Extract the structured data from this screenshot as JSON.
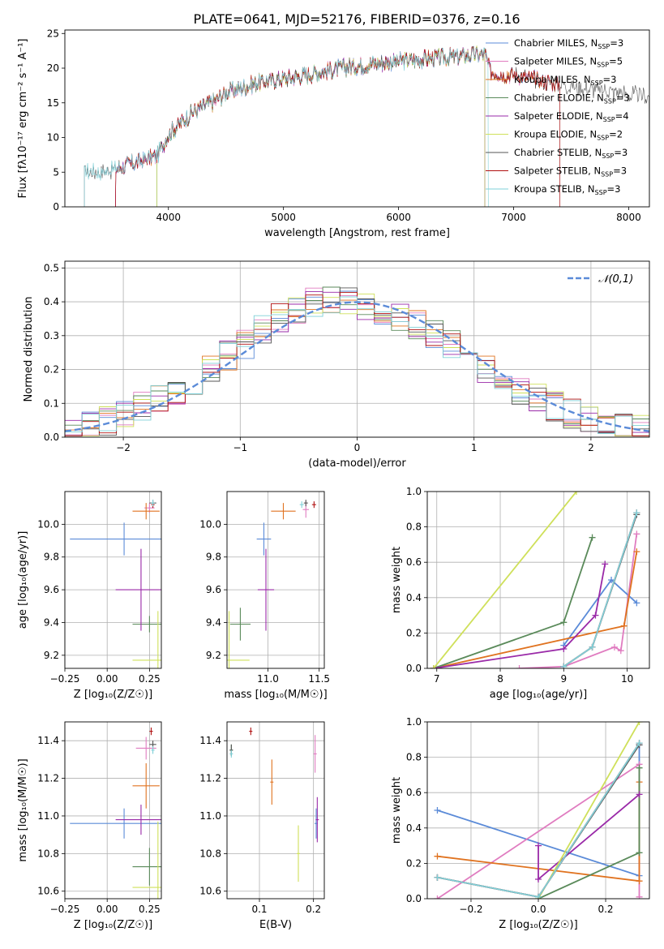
{
  "figure": {
    "title": "PLATE=0641, MJD=52176, FIBERID=0376, z=0.16"
  },
  "colors": {
    "Chabrier MILES": "#5b8bd8",
    "Salpeter MILES": "#e07cc0",
    "Kroupa MILES": "#e07320",
    "Chabrier ELODIE": "#5a8a5a",
    "Salpeter ELODIE": "#9a2aa8",
    "Kroupa ELODIE": "#cfe05a",
    "Chabrier STELIB": "#555555",
    "Salpeter STELIB": "#b01010",
    "Kroupa STELIB": "#7fd0d8",
    "normal": "#5b8bd8"
  },
  "chart_data": [
    {
      "id": "spectrum",
      "type": "line",
      "xlabel": "wavelength [Angstrom, rest frame]",
      "ylabel": "Flux [fλ10⁻¹⁷ erg cm⁻² s⁻¹ A⁻¹]",
      "xlim": [
        3100,
        8180
      ],
      "ylim": [
        0,
        25.5
      ],
      "xticks": [
        4000,
        5000,
        6000,
        7000,
        8000
      ],
      "yticks": [
        0,
        5,
        10,
        15,
        20,
        25
      ],
      "grid": false,
      "legend_position": "top-right",
      "series": [
        {
          "name": "Chabrier MILES, N_SSP=3"
        },
        {
          "name": "Salpeter MILES, N_SSP=5"
        },
        {
          "name": "Kroupa MILES, N_SSP=3"
        },
        {
          "name": "Chabrier ELODIE, N_SSP=3"
        },
        {
          "name": "Salpeter ELODIE, N_SSP=4"
        },
        {
          "name": "Kroupa ELODIE, N_SSP=2"
        },
        {
          "name": "Chabrier STELIB, N_SSP=3"
        },
        {
          "name": "Salpeter STELIB, N_SSP=3"
        },
        {
          "name": "Kroupa STELIB, N_SSP=3"
        }
      ],
      "continuum": {
        "x": [
          3270,
          3400,
          3500,
          3600,
          3700,
          3800,
          3900,
          4000,
          4100,
          4200,
          4300,
          4400,
          4500,
          4600,
          4800,
          5000,
          5200,
          5400,
          5600,
          5800,
          6000,
          6200,
          6400,
          6600,
          6750,
          6800,
          7000,
          7200,
          7400,
          7600,
          7800,
          8000,
          8180
        ],
        "y": [
          5.2,
          5.0,
          5.3,
          5.8,
          6.3,
          6.8,
          7.3,
          10.5,
          12.0,
          13.5,
          14.5,
          15.2,
          16.5,
          17.0,
          18.0,
          18.5,
          19.0,
          19.7,
          20.3,
          20.7,
          21.0,
          21.3,
          21.5,
          21.8,
          22.0,
          19.5,
          19.0,
          18.3,
          17.7,
          17.2,
          16.7,
          16.2,
          15.8
        ]
      }
    },
    {
      "id": "residuals",
      "type": "line",
      "xlabel": "(data-model)/error",
      "ylabel": "Normed distribution",
      "xlim": [
        -2.5,
        2.5
      ],
      "ylim": [
        0,
        0.52
      ],
      "xticks": [
        -2,
        -1,
        0,
        1,
        2
      ],
      "yticks": [
        0.0,
        0.1,
        0.2,
        0.3,
        0.4,
        0.5
      ],
      "grid": true,
      "legend_position": "top-right",
      "reference": {
        "name": "𝒩(0,1)",
        "mean": 0,
        "std": 1
      },
      "hist_center": [
        0.012,
        0.03,
        0.05,
        0.07,
        0.09,
        0.115,
        0.14,
        0.165,
        0.2,
        0.24,
        0.275,
        0.32,
        0.35,
        0.38,
        0.4,
        0.41,
        0.4,
        0.39,
        0.37,
        0.35,
        0.33,
        0.3,
        0.27,
        0.24,
        0.2,
        0.17,
        0.14,
        0.115,
        0.09,
        0.07,
        0.05,
        0.035,
        0.025,
        0.02
      ]
    },
    {
      "id": "age-z",
      "type": "scatter",
      "xlabel": "Z [log₁₀(Z/Z☉)]",
      "ylabel": "age  [log₁₀(age/yr)]",
      "xlim": [
        -0.25,
        0.32
      ],
      "ylim": [
        9.12,
        10.2
      ],
      "xticks": [
        -0.25,
        0.0,
        0.25
      ],
      "yticks": [
        9.2,
        9.4,
        9.6,
        9.8,
        10.0
      ],
      "grid": true,
      "points": [
        {
          "name": "Chabrier MILES",
          "x": 0.1,
          "xerr": 0.32,
          "y": 9.91,
          "yerr": 0.1
        },
        {
          "name": "Salpeter MILES",
          "x": 0.25,
          "xerr": 0.03,
          "y": 10.1,
          "yerr": 0.03
        },
        {
          "name": "Kroupa MILES",
          "x": 0.23,
          "xerr": 0.08,
          "y": 10.08,
          "yerr": 0.05
        },
        {
          "name": "Chabrier ELODIE",
          "x": 0.25,
          "xerr": 0.1,
          "y": 9.39,
          "yerr": 0.05
        },
        {
          "name": "Salpeter ELODIE",
          "x": 0.2,
          "xerr": 0.15,
          "y": 9.6,
          "yerr": 0.25
        },
        {
          "name": "Kroupa ELODIE",
          "x": 0.3,
          "xerr": 0.15,
          "y": 9.17,
          "yerr": 0.3
        },
        {
          "name": "Chabrier STELIB",
          "x": 0.27,
          "xerr": 0.02,
          "y": 10.13,
          "yerr": 0.02
        },
        {
          "name": "Salpeter STELIB",
          "x": 0.27,
          "xerr": 0.01,
          "y": 10.12,
          "yerr": 0.02
        },
        {
          "name": "Kroupa STELIB",
          "x": 0.27,
          "xerr": 0.01,
          "y": 10.13,
          "yerr": 0.02
        }
      ]
    },
    {
      "id": "age-mass",
      "type": "scatter",
      "xlabel": "mass [log₁₀(M/M☉)]",
      "ylabel": "",
      "xlim": [
        10.6,
        11.55
      ],
      "ylim": [
        9.12,
        10.2
      ],
      "xticks": [
        11.0,
        11.5
      ],
      "yticks": [
        9.2,
        9.4,
        9.6,
        9.8,
        10.0
      ],
      "grid": true,
      "points": [
        {
          "name": "Chabrier MILES",
          "x": 10.96,
          "xerr": 0.07,
          "y": 9.91,
          "yerr": 0.1
        },
        {
          "name": "Salpeter MILES",
          "x": 11.37,
          "xerr": 0.03,
          "y": 10.09,
          "yerr": 0.05
        },
        {
          "name": "Kroupa MILES",
          "x": 11.15,
          "xerr": 0.12,
          "y": 10.08,
          "yerr": 0.05
        },
        {
          "name": "Chabrier ELODIE",
          "x": 10.73,
          "xerr": 0.1,
          "y": 9.39,
          "yerr": 0.1
        },
        {
          "name": "Salpeter ELODIE",
          "x": 10.98,
          "xerr": 0.08,
          "y": 9.6,
          "yerr": 0.25
        },
        {
          "name": "Kroupa ELODIE",
          "x": 10.62,
          "xerr": 0.2,
          "y": 9.17,
          "yerr": 0.3
        },
        {
          "name": "Chabrier STELIB",
          "x": 11.37,
          "xerr": 0.02,
          "y": 10.13,
          "yerr": 0.02
        },
        {
          "name": "Salpeter STELIB",
          "x": 11.45,
          "xerr": 0.02,
          "y": 10.12,
          "yerr": 0.02
        },
        {
          "name": "Kroupa STELIB",
          "x": 11.33,
          "xerr": 0.02,
          "y": 10.12,
          "yerr": 0.02
        }
      ]
    },
    {
      "id": "weight-age",
      "type": "line",
      "xlabel": "age  [log₁₀(age/yr)]",
      "ylabel": "mass weight",
      "xlim": [
        6.85,
        10.35
      ],
      "ylim": [
        0,
        1.0
      ],
      "xticks": [
        7,
        8,
        9,
        10
      ],
      "yticks": [
        0.0,
        0.2,
        0.4,
        0.6,
        0.8,
        1.0
      ],
      "grid": true,
      "series": [
        {
          "name": "Chabrier MILES",
          "x": [
            9.0,
            9.75,
            10.15
          ],
          "y": [
            0.13,
            0.5,
            0.37
          ]
        },
        {
          "name": "Salpeter MILES",
          "x": [
            8.3,
            9.0,
            9.8,
            9.9,
            10.15
          ],
          "y": [
            0.0,
            0.01,
            0.12,
            0.1,
            0.76
          ]
        },
        {
          "name": "Kroupa MILES",
          "x": [
            6.95,
            9.95,
            10.15
          ],
          "y": [
            0.0,
            0.24,
            0.66
          ]
        },
        {
          "name": "Chabrier ELODIE",
          "x": [
            6.95,
            9.0,
            9.45
          ],
          "y": [
            0.0,
            0.26,
            0.74
          ]
        },
        {
          "name": "Salpeter ELODIE",
          "x": [
            6.95,
            9.0,
            9.5,
            9.65
          ],
          "y": [
            0.0,
            0.11,
            0.3,
            0.59
          ]
        },
        {
          "name": "Kroupa ELODIE",
          "x": [
            6.95,
            9.2
          ],
          "y": [
            0.0,
            1.0
          ]
        },
        {
          "name": "Chabrier STELIB",
          "x": [
            9.0,
            9.45,
            10.15
          ],
          "y": [
            0.01,
            0.12,
            0.87
          ]
        },
        {
          "name": "Salpeter STELIB",
          "x": [
            9.0,
            9.45,
            10.15
          ],
          "y": [
            0.01,
            0.12,
            0.88
          ]
        },
        {
          "name": "Kroupa STELIB",
          "x": [
            9.0,
            9.45,
            10.15
          ],
          "y": [
            0.01,
            0.12,
            0.88
          ]
        }
      ]
    },
    {
      "id": "mass-z",
      "type": "scatter",
      "xlabel": "Z [log₁₀(Z/Z☉)]",
      "ylabel": "mass [log₁₀(M/M☉)]",
      "xlim": [
        -0.25,
        0.32
      ],
      "ylim": [
        10.56,
        11.5
      ],
      "xticks": [
        -0.25,
        0.0,
        0.25
      ],
      "yticks": [
        10.6,
        10.8,
        11.0,
        11.2,
        11.4
      ],
      "grid": true,
      "points": [
        {
          "name": "Chabrier MILES",
          "x": 0.1,
          "xerr": 0.32,
          "y": 10.96,
          "yerr": 0.08
        },
        {
          "name": "Salpeter MILES",
          "x": 0.23,
          "xerr": 0.06,
          "y": 11.36,
          "yerr": 0.06
        },
        {
          "name": "Kroupa MILES",
          "x": 0.23,
          "xerr": 0.08,
          "y": 11.16,
          "yerr": 0.12
        },
        {
          "name": "Chabrier ELODIE",
          "x": 0.25,
          "xerr": 0.1,
          "y": 10.73,
          "yerr": 0.1
        },
        {
          "name": "Salpeter ELODIE",
          "x": 0.2,
          "xerr": 0.15,
          "y": 10.98,
          "yerr": 0.08
        },
        {
          "name": "Kroupa ELODIE",
          "x": 0.3,
          "xerr": 0.15,
          "y": 10.62,
          "yerr": 0.35
        },
        {
          "name": "Chabrier STELIB",
          "x": 0.27,
          "xerr": 0.02,
          "y": 11.38,
          "yerr": 0.02
        },
        {
          "name": "Salpeter STELIB",
          "x": 0.26,
          "xerr": 0.01,
          "y": 11.45,
          "yerr": 0.02
        },
        {
          "name": "Kroupa STELIB",
          "x": 0.27,
          "xerr": 0.01,
          "y": 11.35,
          "yerr": 0.02
        }
      ]
    },
    {
      "id": "mass-ebv",
      "type": "scatter",
      "xlabel": "E(B-V)",
      "ylabel": "",
      "xlim": [
        0.04,
        0.22
      ],
      "ylim": [
        10.56,
        11.5
      ],
      "xticks": [
        0.1,
        0.2
      ],
      "yticks": [
        10.6,
        10.8,
        11.0,
        11.2,
        11.4
      ],
      "grid": true,
      "points": [
        {
          "name": "Chabrier MILES",
          "x": 0.205,
          "xerr": 0.003,
          "y": 10.96,
          "yerr": 0.08
        },
        {
          "name": "Salpeter MILES",
          "x": 0.203,
          "xerr": 0.003,
          "y": 11.33,
          "yerr": 0.1
        },
        {
          "name": "Kroupa MILES",
          "x": 0.123,
          "xerr": 0.003,
          "y": 11.18,
          "yerr": 0.12
        },
        {
          "name": "Chabrier ELODIE",
          "x": 0.048,
          "xerr": 0.003,
          "y": 11.35,
          "yerr": 0.03
        },
        {
          "name": "Salpeter ELODIE",
          "x": 0.207,
          "xerr": 0.003,
          "y": 10.98,
          "yerr": 0.12
        },
        {
          "name": "Kroupa ELODIE",
          "x": 0.172,
          "xerr": 0.003,
          "y": 10.8,
          "yerr": 0.15
        },
        {
          "name": "Chabrier STELIB",
          "x": 0.048,
          "xerr": 0.003,
          "y": 11.35,
          "yerr": 0.03
        },
        {
          "name": "Salpeter STELIB",
          "x": 0.084,
          "xerr": 0.003,
          "y": 11.45,
          "yerr": 0.02
        },
        {
          "name": "Kroupa STELIB",
          "x": 0.048,
          "xerr": 0.003,
          "y": 11.33,
          "yerr": 0.02
        }
      ]
    },
    {
      "id": "weight-z",
      "type": "line",
      "xlabel": "Z [log₁₀(Z/Z☉)]",
      "ylabel": "mass weight",
      "xlim": [
        -0.33,
        0.33
      ],
      "ylim": [
        0,
        1.0
      ],
      "xticks": [
        -0.2,
        0.0,
        0.2
      ],
      "yticks": [
        0.0,
        0.2,
        0.4,
        0.6,
        0.8,
        1.0
      ],
      "grid": true,
      "series": [
        {
          "name": "Chabrier MILES",
          "x": [
            -0.3,
            0.3,
            0.3
          ],
          "y": [
            0.5,
            0.13,
            0.87
          ]
        },
        {
          "name": "Salpeter MILES",
          "x": [
            -0.3,
            0.3,
            0.3
          ],
          "y": [
            0.0,
            0.76,
            0.01
          ]
        },
        {
          "name": "Kroupa MILES",
          "x": [
            -0.3,
            0.3,
            0.3
          ],
          "y": [
            0.24,
            0.1,
            0.66
          ]
        },
        {
          "name": "Chabrier ELODIE",
          "x": [
            0.0,
            0.3,
            0.3
          ],
          "y": [
            0.0,
            0.26,
            0.74
          ]
        },
        {
          "name": "Salpeter ELODIE",
          "x": [
            0.0,
            0.0,
            0.3
          ],
          "y": [
            0.3,
            0.11,
            0.59
          ]
        },
        {
          "name": "Kroupa ELODIE",
          "x": [
            0.0,
            0.3
          ],
          "y": [
            0.0,
            1.0
          ]
        },
        {
          "name": "Chabrier STELIB",
          "x": [
            -0.3,
            0.0,
            0.3
          ],
          "y": [
            0.12,
            0.01,
            0.87
          ]
        },
        {
          "name": "Salpeter STELIB",
          "x": [
            -0.3,
            0.0,
            0.3
          ],
          "y": [
            0.12,
            0.01,
            0.88
          ]
        },
        {
          "name": "Kroupa STELIB",
          "x": [
            -0.3,
            0.0,
            0.3
          ],
          "y": [
            0.12,
            0.01,
            0.88
          ]
        }
      ]
    }
  ]
}
